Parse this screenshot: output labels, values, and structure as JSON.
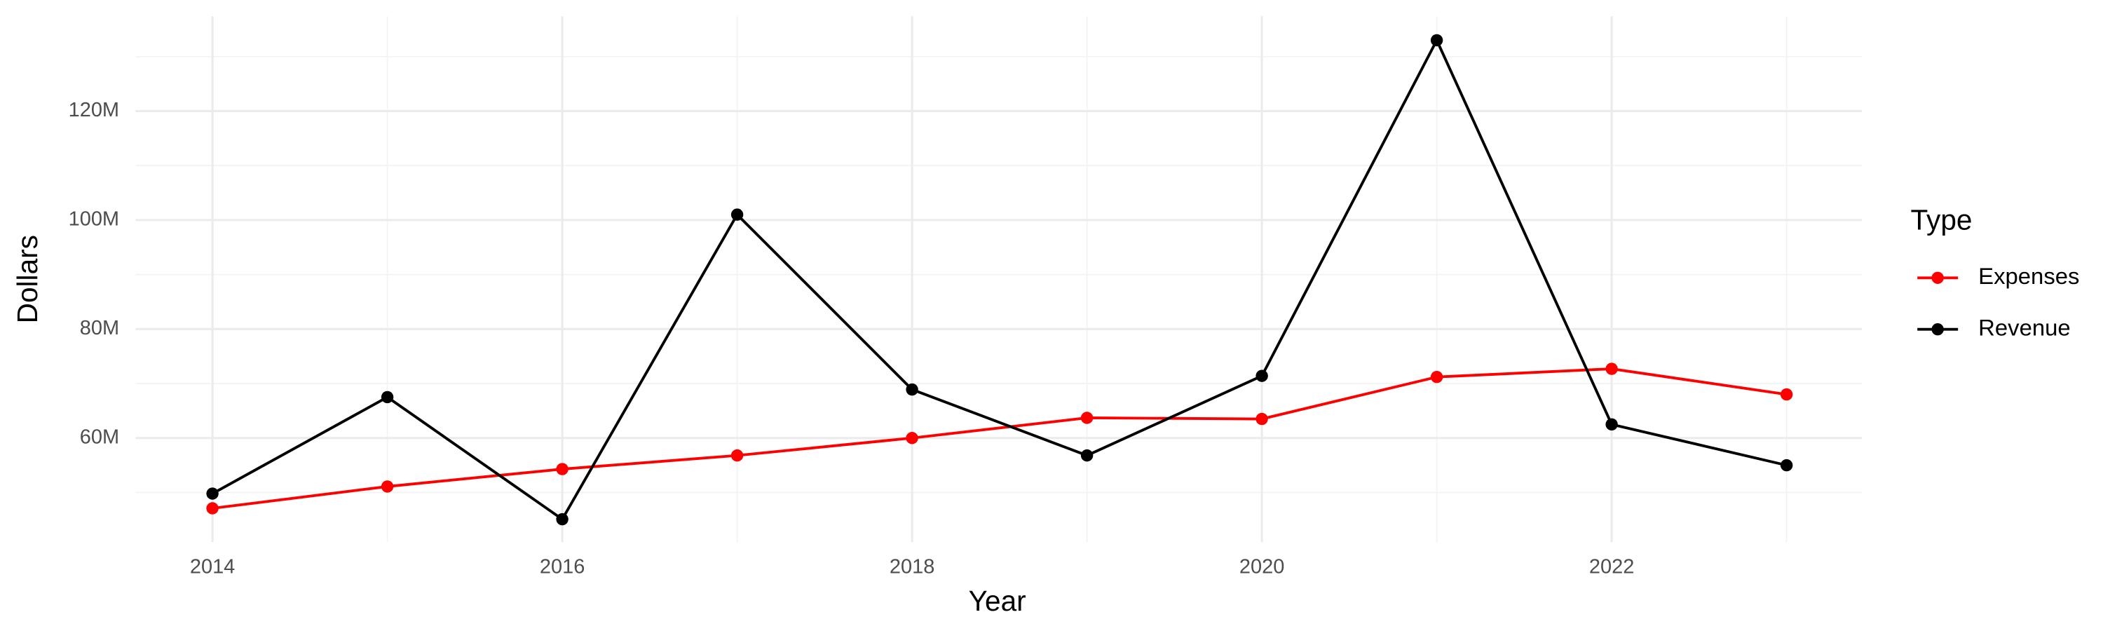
{
  "chart_data": {
    "type": "line",
    "x_label": "Year",
    "y_label": "Dollars",
    "legend_title": "Type",
    "legend": "right",
    "grid": true,
    "x": [
      2014,
      2015,
      2016,
      2017,
      2018,
      2019,
      2020,
      2021,
      2022,
      2023
    ],
    "series": [
      {
        "name": "Expenses",
        "color": "#ff0000",
        "values": [
          47100000,
          51100000,
          54300000,
          56800000,
          60000000,
          63700000,
          63500000,
          71200000,
          72700000,
          68000000
        ]
      },
      {
        "name": "Revenue",
        "color": "#000000",
        "values": [
          49800000,
          67500000,
          45100000,
          101000000,
          68900000,
          56800000,
          71400000,
          133000000,
          62500000,
          55000000
        ]
      }
    ],
    "xlim": [
      2013.56,
      2023.43
    ],
    "xticks": [
      2014,
      2016,
      2018,
      2020,
      2022
    ],
    "ylim": [
      40900000,
      137400000
    ],
    "yticks": [
      {
        "value": 60000000,
        "label": "60M"
      },
      {
        "value": 80000000,
        "label": "80M"
      },
      {
        "value": 100000000,
        "label": "100M"
      },
      {
        "value": 120000000,
        "label": "120M"
      }
    ]
  }
}
